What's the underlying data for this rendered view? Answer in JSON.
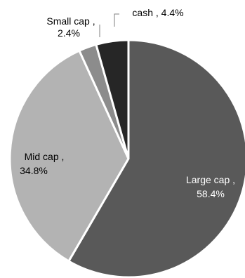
{
  "chart_data": {
    "type": "pie",
    "title": "",
    "slices": [
      {
        "name": "Large cap",
        "value": 58.4,
        "value_label": "58.4%",
        "color": "#595959",
        "label_color": "#ffffff",
        "label_line1": "Large cap ,",
        "label_line2": "58.4%"
      },
      {
        "name": "Mid cap",
        "value": 34.8,
        "value_label": "34.8%",
        "color": "#b3b3b3",
        "label_color": "#000000",
        "label_line1": "Mid cap ,",
        "label_line2": "34.8%"
      },
      {
        "name": "Small cap",
        "value": 2.4,
        "value_label": "2.4%",
        "color": "#8c8c8c",
        "label_color": "#000000",
        "label_line1": "Small cap ,",
        "label_line2": "2.4%"
      },
      {
        "name": "cash",
        "value": 4.4,
        "value_label": "4.4%",
        "color": "#262626",
        "label_color": "#000000",
        "label_line1": "cash , 4.4%",
        "label_line2": ""
      }
    ],
    "start_angle_deg": 0,
    "direction": "clockwise",
    "legend": "none",
    "slice_border_color": "#ffffff"
  }
}
